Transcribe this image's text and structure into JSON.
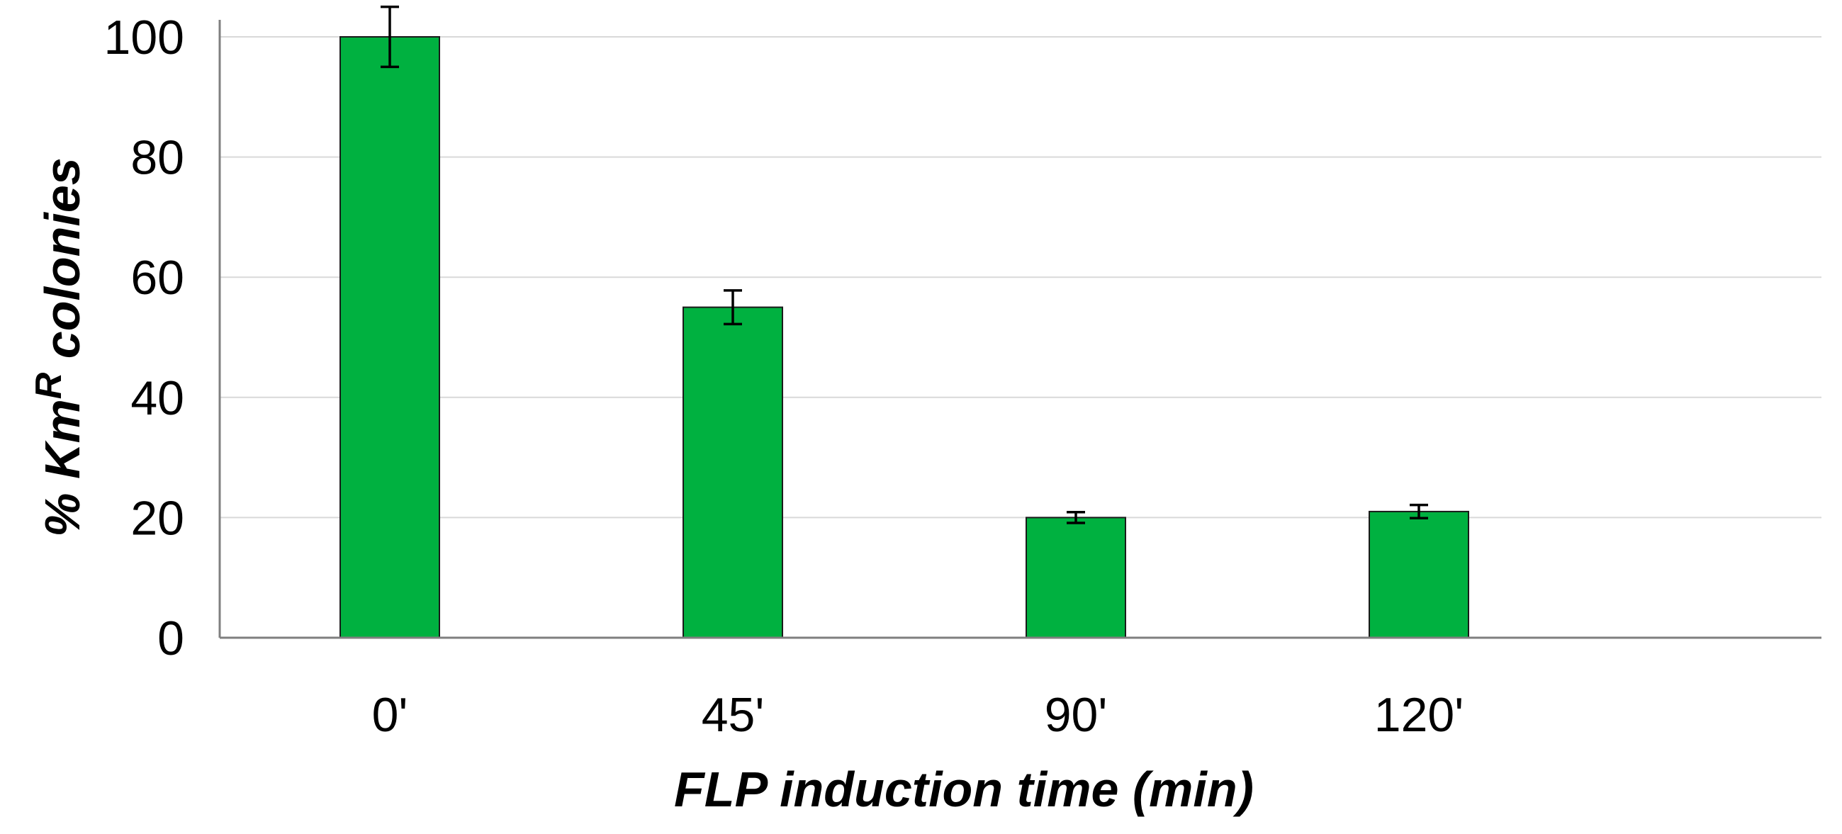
{
  "chart_data": {
    "type": "bar",
    "categories": [
      "0'",
      "45'",
      "90'",
      "120'"
    ],
    "series": [
      {
        "values": [
          100,
          55,
          20,
          21
        ],
        "errors": [
          5,
          2.8,
          0.9,
          1.1
        ],
        "color": "#00b140"
      }
    ],
    "xlabel": "FLP induction time (min)",
    "ylabel_parts": {
      "prefix": "% Km",
      "superscript": "R",
      "suffix": " colonies"
    },
    "ylim": [
      0,
      100
    ],
    "yticks": [
      0,
      20,
      40,
      60,
      80,
      100
    ],
    "grid": true,
    "legend": "none"
  }
}
